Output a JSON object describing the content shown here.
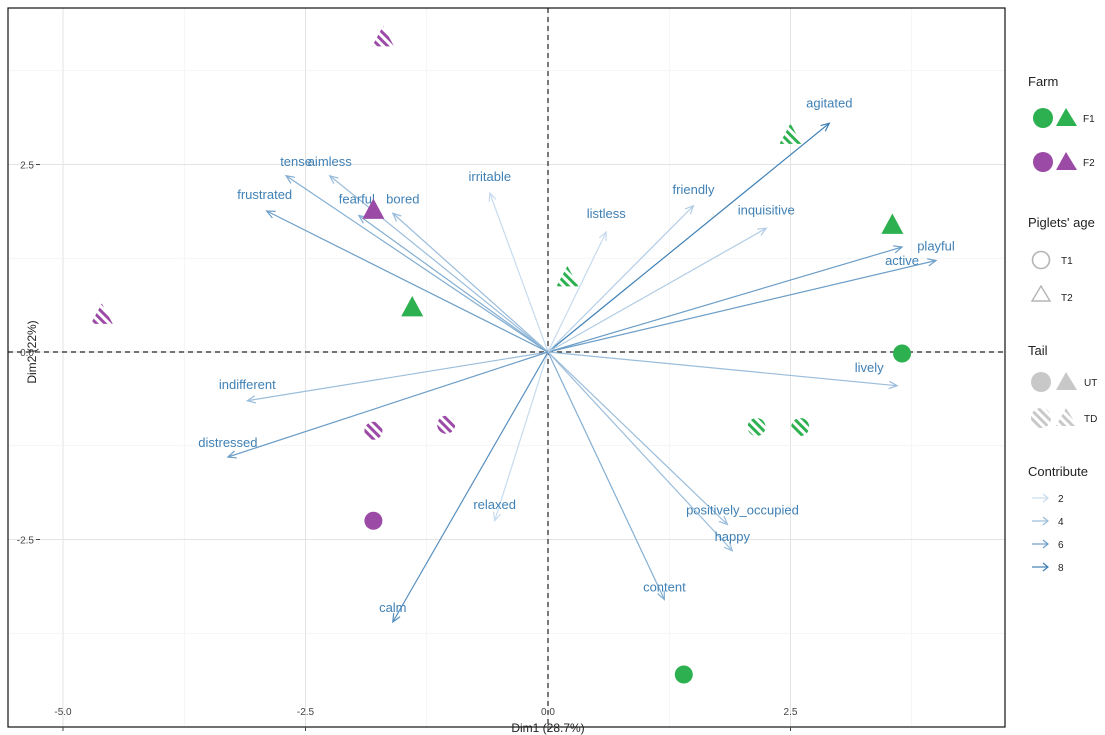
{
  "chart_data": {
    "type": "scatter",
    "subtype": "pca-biplot",
    "xlabel": "Dim1 (28.7%)",
    "ylabel": "Dim2 (22%)",
    "xlim": [
      -5.0,
      4.5
    ],
    "ylim": [
      -4.5,
      4.6
    ],
    "x_ticks": [
      -5.0,
      -2.5,
      0.0,
      2.5
    ],
    "x_tick_labels": [
      "-5.0",
      "-2.5",
      "0.0",
      "2.5"
    ],
    "y_ticks": [
      -2.5,
      0.0,
      2.5
    ],
    "y_tick_labels": [
      "-2.5",
      "0.0",
      "2.5"
    ],
    "grid": true,
    "zero_lines": "dashed",
    "legend_placement": "right",
    "colors": {
      "F1": "#2db04f",
      "F2": "#9b4ba6",
      "arrow": "#3f80b5",
      "arrow_light": "#c7dbee"
    },
    "variables": [
      {
        "label": "agitated",
        "x": 2.9,
        "y": 3.05,
        "contribute": 8
      },
      {
        "label": "active",
        "x": 3.65,
        "y": 1.4,
        "contribute": 6
      },
      {
        "label": "playful",
        "x": 4.0,
        "y": 1.22,
        "contribute": 6
      },
      {
        "label": "lively",
        "x": 3.6,
        "y": -0.45,
        "contribute": 4
      },
      {
        "label": "inquisitive",
        "x": 2.25,
        "y": 1.65,
        "contribute": 3
      },
      {
        "label": "friendly",
        "x": 1.5,
        "y": 1.95,
        "contribute": 3
      },
      {
        "label": "listless",
        "x": 0.6,
        "y": 1.6,
        "contribute": 2
      },
      {
        "label": "irritable",
        "x": -0.6,
        "y": 2.12,
        "contribute": 2
      },
      {
        "label": "tense",
        "x": -2.7,
        "y": 2.35,
        "contribute": 5
      },
      {
        "label": "aimless",
        "x": -2.25,
        "y": 2.35,
        "contribute": 4
      },
      {
        "label": "fearful",
        "x": -1.95,
        "y": 1.82,
        "contribute": 5
      },
      {
        "label": "bored",
        "x": -1.6,
        "y": 1.85,
        "contribute": 4
      },
      {
        "label": "frustrated",
        "x": -2.9,
        "y": 1.88,
        "contribute": 6
      },
      {
        "label": "indifferent",
        "x": -3.1,
        "y": -0.65,
        "contribute": 4
      },
      {
        "label": "distressed",
        "x": -3.3,
        "y": -1.4,
        "contribute": 6
      },
      {
        "label": "relaxed",
        "x": -0.55,
        "y": -2.25,
        "contribute": 2
      },
      {
        "label": "calm",
        "x": -1.6,
        "y": -3.6,
        "contribute": 7
      },
      {
        "label": "content",
        "x": 1.2,
        "y": -3.3,
        "contribute": 5
      },
      {
        "label": "positively_occupied",
        "x": 1.85,
        "y": -2.3,
        "contribute": 4
      },
      {
        "label": "happy",
        "x": 1.9,
        "y": -2.65,
        "contribute": 4
      }
    ],
    "points": [
      {
        "x": -1.7,
        "y": 4.2,
        "farm": "F2",
        "age": "T2",
        "tail": "TD"
      },
      {
        "x": -4.6,
        "y": 0.5,
        "farm": "F2",
        "age": "T2",
        "tail": "TD"
      },
      {
        "x": -1.8,
        "y": 1.9,
        "farm": "F2",
        "age": "T2",
        "tail": "UT"
      },
      {
        "x": -1.4,
        "y": 0.6,
        "farm": "F1",
        "age": "T2",
        "tail": "UT"
      },
      {
        "x": 0.2,
        "y": 1.0,
        "farm": "F1",
        "age": "T2",
        "tail": "TD"
      },
      {
        "x": 2.5,
        "y": 2.9,
        "farm": "F1",
        "age": "T2",
        "tail": "TD"
      },
      {
        "x": 3.55,
        "y": 1.7,
        "farm": "F1",
        "age": "T2",
        "tail": "UT"
      },
      {
        "x": 3.65,
        "y": -0.02,
        "farm": "F1",
        "age": "T1",
        "tail": "UT"
      },
      {
        "x": 2.15,
        "y": -1.0,
        "farm": "F1",
        "age": "T1",
        "tail": "TD"
      },
      {
        "x": 2.6,
        "y": -1.0,
        "farm": "F1",
        "age": "T1",
        "tail": "TD"
      },
      {
        "x": -1.8,
        "y": -1.05,
        "farm": "F2",
        "age": "T1",
        "tail": "TD"
      },
      {
        "x": -1.05,
        "y": -0.97,
        "farm": "F2",
        "age": "T1",
        "tail": "TD"
      },
      {
        "x": -1.8,
        "y": -2.25,
        "farm": "F2",
        "age": "T1",
        "tail": "UT"
      },
      {
        "x": 1.4,
        "y": -4.3,
        "farm": "F1",
        "age": "T1",
        "tail": "UT"
      }
    ],
    "legend": {
      "farm": {
        "title": "Farm",
        "items": [
          "F1",
          "F2"
        ]
      },
      "age": {
        "title": "Piglets' age",
        "items": [
          "T1",
          "T2"
        ]
      },
      "tail": {
        "title": "Tail",
        "items": [
          "UT",
          "TD"
        ]
      },
      "contribute": {
        "title": "Contribute",
        "items": [
          "2",
          "4",
          "6",
          "8"
        ]
      }
    }
  }
}
